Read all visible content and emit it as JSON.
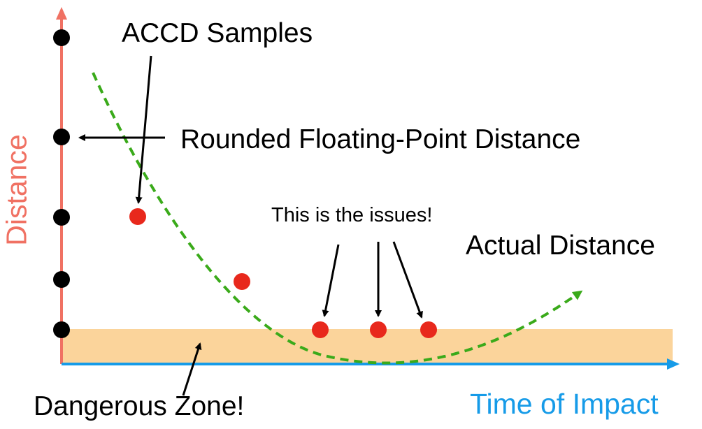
{
  "labels": {
    "accd_samples": "ACCD Samples",
    "rounded_distance": "Rounded Floating-Point Distance",
    "issues": "This is the issues!",
    "actual_distance": "Actual Distance",
    "dangerous_zone": "Dangerous Zone!",
    "x_axis": "Time of Impact",
    "y_axis": "Distance"
  },
  "colors": {
    "axis_y": "#f07163",
    "axis_x": "#169be8",
    "curve": "#3aaa1a",
    "sample_dot": "#e8281c",
    "rounded_dot": "#000000",
    "danger_fill": "#fbd49b"
  }
}
